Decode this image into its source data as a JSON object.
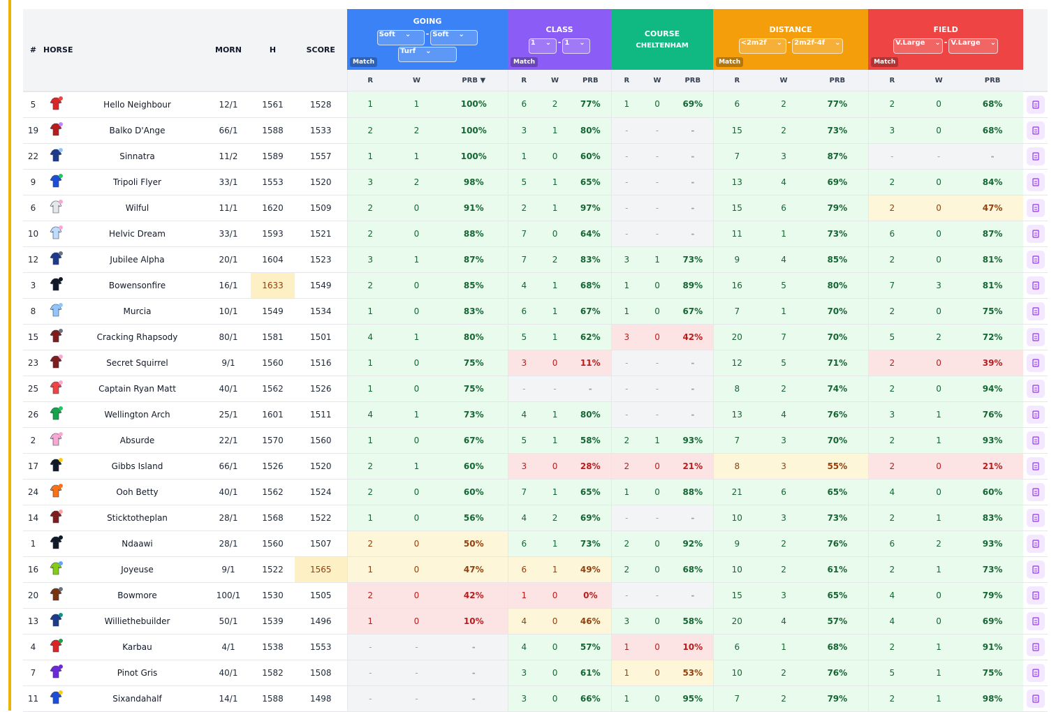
{
  "table": {
    "columns": [
      "#",
      "HORSE",
      "MORN",
      "H",
      "SCORE"
    ],
    "groups": [
      {
        "title": "GOING",
        "filters": [
          "Soft",
          "Soft",
          "Turf"
        ],
        "separator": "-",
        "badge": "Match"
      },
      {
        "title": "CLASS",
        "filters": [
          "1",
          "1"
        ],
        "separator": "-",
        "badge": "Match"
      },
      {
        "title": "COURSE",
        "subtitle": "CHELTENHAM"
      },
      {
        "title": "DISTANCE",
        "filters": [
          "<2m2f",
          "2m2f-4f"
        ],
        "separator": "-",
        "badge": "Match"
      },
      {
        "title": "FIELD",
        "filters": [
          "V.Large",
          "V.Large"
        ],
        "separator": "-",
        "badge": "Match"
      }
    ],
    "subheaders": [
      "R",
      "W",
      "PRB"
    ],
    "sort_indicator": "▼",
    "rows": [
      [
        5,
        "Hello Neighbour",
        "12/1",
        1561,
        1528,
        [
          1,
          1,
          "100%"
        ],
        [
          6,
          2,
          "77%"
        ],
        [
          1,
          0,
          "69%"
        ],
        [
          6,
          2,
          "77%"
        ],
        [
          2,
          0,
          "68%"
        ]
      ],
      [
        19,
        "Balko D'Ange",
        "66/1",
        1588,
        1533,
        [
          2,
          2,
          "100%"
        ],
        [
          3,
          1,
          "80%"
        ],
        [
          "-",
          "-",
          "-"
        ],
        [
          15,
          2,
          "73%"
        ],
        [
          3,
          0,
          "68%"
        ]
      ],
      [
        22,
        "Sinnatra",
        "11/2",
        1589,
        1557,
        [
          1,
          1,
          "100%"
        ],
        [
          1,
          0,
          "60%"
        ],
        [
          "-",
          "-",
          "-"
        ],
        [
          7,
          3,
          "87%"
        ],
        [
          "-",
          "-",
          "-"
        ]
      ],
      [
        9,
        "Tripoli Flyer",
        "33/1",
        1553,
        1520,
        [
          3,
          2,
          "98%"
        ],
        [
          5,
          1,
          "65%"
        ],
        [
          "-",
          "-",
          "-"
        ],
        [
          13,
          4,
          "69%"
        ],
        [
          2,
          0,
          "84%"
        ]
      ],
      [
        6,
        "Wilful",
        "11/1",
        1620,
        1509,
        [
          2,
          0,
          "91%"
        ],
        [
          2,
          1,
          "97%"
        ],
        [
          "-",
          "-",
          "-"
        ],
        [
          15,
          6,
          "79%"
        ],
        [
          2,
          0,
          "47%"
        ]
      ],
      [
        10,
        "Helvic Dream",
        "33/1",
        1593,
        1521,
        [
          2,
          0,
          "88%"
        ],
        [
          7,
          0,
          "64%"
        ],
        [
          "-",
          "-",
          "-"
        ],
        [
          11,
          1,
          "73%"
        ],
        [
          6,
          0,
          "87%"
        ]
      ],
      [
        12,
        "Jubilee Alpha",
        "20/1",
        1604,
        1523,
        [
          3,
          1,
          "87%"
        ],
        [
          7,
          2,
          "83%"
        ],
        [
          3,
          1,
          "73%"
        ],
        [
          9,
          4,
          "85%"
        ],
        [
          2,
          0,
          "81%"
        ]
      ],
      [
        3,
        "Bowensonfire",
        "16/1",
        1633,
        1549,
        [
          2,
          0,
          "85%"
        ],
        [
          4,
          1,
          "68%"
        ],
        [
          1,
          0,
          "89%"
        ],
        [
          16,
          5,
          "80%"
        ],
        [
          7,
          3,
          "81%"
        ]
      ],
      [
        8,
        "Murcia",
        "10/1",
        1549,
        1534,
        [
          1,
          0,
          "83%"
        ],
        [
          6,
          1,
          "67%"
        ],
        [
          1,
          0,
          "67%"
        ],
        [
          7,
          1,
          "70%"
        ],
        [
          2,
          0,
          "75%"
        ]
      ],
      [
        15,
        "Cracking Rhapsody",
        "80/1",
        1581,
        1501,
        [
          4,
          1,
          "80%"
        ],
        [
          5,
          1,
          "62%"
        ],
        [
          3,
          0,
          "42%"
        ],
        [
          20,
          7,
          "70%"
        ],
        [
          5,
          2,
          "72%"
        ]
      ],
      [
        23,
        "Secret Squirrel",
        "9/1",
        1560,
        1516,
        [
          1,
          0,
          "75%"
        ],
        [
          3,
          0,
          "11%"
        ],
        [
          "-",
          "-",
          "-"
        ],
        [
          12,
          5,
          "71%"
        ],
        [
          2,
          0,
          "39%"
        ]
      ],
      [
        25,
        "Captain Ryan Matt",
        "40/1",
        1562,
        1526,
        [
          1,
          0,
          "75%"
        ],
        [
          "-",
          "-",
          "-"
        ],
        [
          "-",
          "-",
          "-"
        ],
        [
          8,
          2,
          "74%"
        ],
        [
          2,
          0,
          "94%"
        ]
      ],
      [
        26,
        "Wellington Arch",
        "25/1",
        1601,
        1511,
        [
          4,
          1,
          "73%"
        ],
        [
          4,
          1,
          "80%"
        ],
        [
          "-",
          "-",
          "-"
        ],
        [
          13,
          4,
          "76%"
        ],
        [
          3,
          1,
          "76%"
        ]
      ],
      [
        2,
        "Absurde",
        "22/1",
        1570,
        1560,
        [
          1,
          0,
          "67%"
        ],
        [
          5,
          1,
          "58%"
        ],
        [
          2,
          1,
          "93%"
        ],
        [
          7,
          3,
          "70%"
        ],
        [
          2,
          1,
          "93%"
        ]
      ],
      [
        17,
        "Gibbs Island",
        "66/1",
        1526,
        1520,
        [
          2,
          1,
          "60%"
        ],
        [
          3,
          0,
          "28%"
        ],
        [
          2,
          0,
          "21%"
        ],
        [
          8,
          3,
          "55%"
        ],
        [
          2,
          0,
          "21%"
        ]
      ],
      [
        24,
        "Ooh Betty",
        "40/1",
        1562,
        1524,
        [
          2,
          0,
          "60%"
        ],
        [
          7,
          1,
          "65%"
        ],
        [
          1,
          0,
          "88%"
        ],
        [
          21,
          6,
          "65%"
        ],
        [
          4,
          0,
          "60%"
        ]
      ],
      [
        14,
        "Sticktotheplan",
        "28/1",
        1568,
        1522,
        [
          1,
          0,
          "56%"
        ],
        [
          4,
          2,
          "69%"
        ],
        [
          "-",
          "-",
          "-"
        ],
        [
          10,
          3,
          "73%"
        ],
        [
          2,
          1,
          "83%"
        ]
      ],
      [
        1,
        "Ndaawi",
        "28/1",
        1560,
        1507,
        [
          2,
          0,
          "50%"
        ],
        [
          6,
          1,
          "73%"
        ],
        [
          2,
          0,
          "92%"
        ],
        [
          9,
          2,
          "76%"
        ],
        [
          6,
          2,
          "93%"
        ]
      ],
      [
        16,
        "Joyeuse",
        "9/1",
        1522,
        1565,
        [
          1,
          0,
          "47%"
        ],
        [
          6,
          1,
          "49%"
        ],
        [
          2,
          0,
          "68%"
        ],
        [
          10,
          2,
          "61%"
        ],
        [
          2,
          1,
          "73%"
        ]
      ],
      [
        20,
        "Bowmore",
        "100/1",
        1530,
        1505,
        [
          2,
          0,
          "42%"
        ],
        [
          1,
          0,
          "0%"
        ],
        [
          "-",
          "-",
          "-"
        ],
        [
          15,
          3,
          "65%"
        ],
        [
          4,
          0,
          "79%"
        ]
      ],
      [
        13,
        "Williethebuilder",
        "50/1",
        1539,
        1496,
        [
          1,
          0,
          "10%"
        ],
        [
          4,
          0,
          "46%"
        ],
        [
          3,
          0,
          "58%"
        ],
        [
          20,
          4,
          "57%"
        ],
        [
          4,
          0,
          "69%"
        ]
      ],
      [
        4,
        "Karbau",
        "4/1",
        1538,
        1553,
        [
          "-",
          "-",
          "-"
        ],
        [
          4,
          0,
          "57%"
        ],
        [
          1,
          0,
          "10%"
        ],
        [
          6,
          1,
          "68%"
        ],
        [
          2,
          1,
          "91%"
        ]
      ],
      [
        7,
        "Pinot Gris",
        "40/1",
        1582,
        1508,
        [
          "-",
          "-",
          "-"
        ],
        [
          3,
          0,
          "61%"
        ],
        [
          1,
          0,
          "53%"
        ],
        [
          10,
          2,
          "76%"
        ],
        [
          5,
          1,
          "75%"
        ]
      ],
      [
        11,
        "Sixandahalf",
        "14/1",
        1588,
        1498,
        [
          "-",
          "-",
          "-"
        ],
        [
          3,
          0,
          "66%"
        ],
        [
          1,
          0,
          "95%"
        ],
        [
          7,
          2,
          "79%"
        ],
        [
          2,
          1,
          "98%"
        ]
      ]
    ]
  }
}
